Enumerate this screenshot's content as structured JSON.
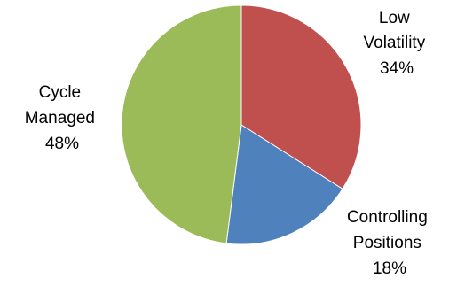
{
  "chart_data": {
    "type": "pie",
    "title": "",
    "start_angle_deg": 0,
    "direction": "clockwise",
    "slices": [
      {
        "label_lines": [
          "Low",
          "Volatility"
        ],
        "pct_label": "34%",
        "value": 34,
        "color": "#c0504d"
      },
      {
        "label_lines": [
          "Controlling",
          "Positions"
        ],
        "pct_label": "18%",
        "value": 18,
        "color": "#4f81bd"
      },
      {
        "label_lines": [
          "Cycle",
          "Managed"
        ],
        "pct_label": "48%",
        "value": 48,
        "color": "#9bbb59"
      }
    ]
  }
}
